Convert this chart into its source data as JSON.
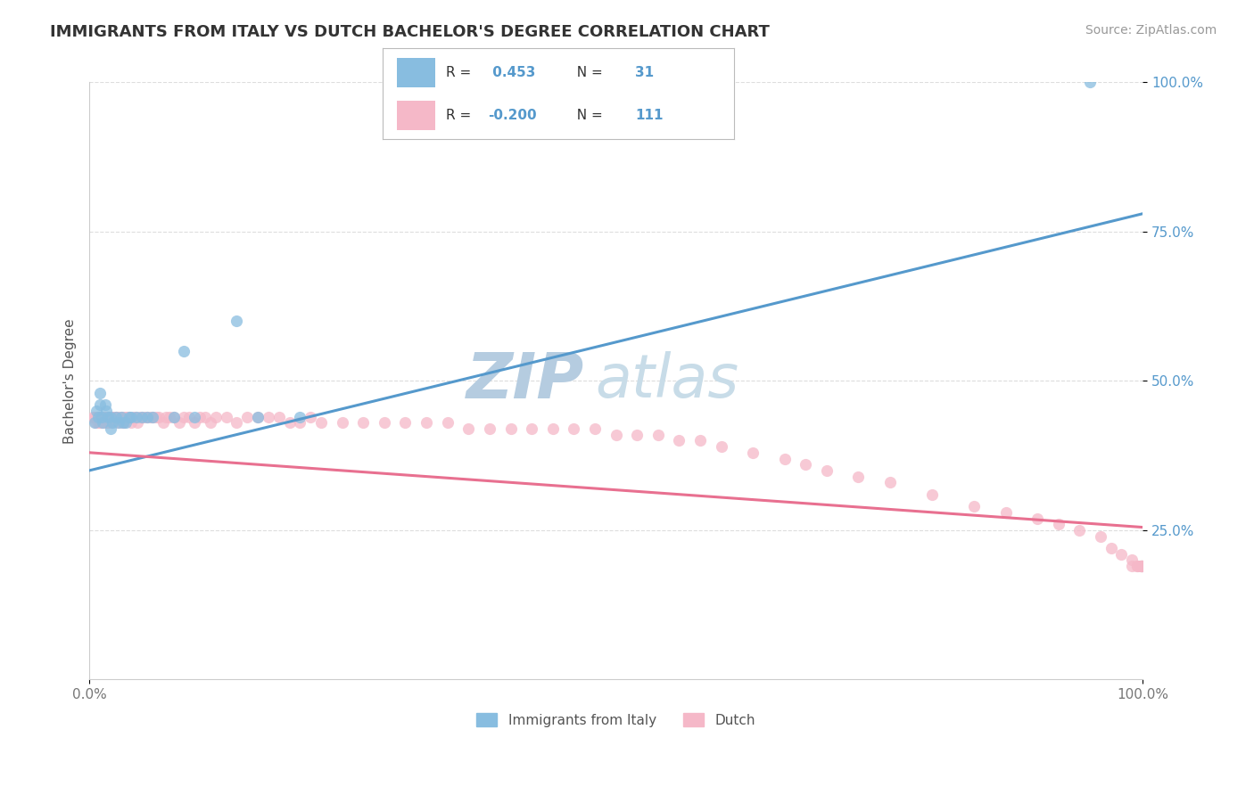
{
  "title": "IMMIGRANTS FROM ITALY VS DUTCH BACHELOR'S DEGREE CORRELATION CHART",
  "source": "Source: ZipAtlas.com",
  "ylabel": "Bachelor's Degree",
  "legend_label_1": "Immigrants from Italy",
  "legend_label_2": "Dutch",
  "r1": 0.453,
  "n1": 31,
  "r2": -0.2,
  "n2": 111,
  "color_blue": "#88bde0",
  "color_pink": "#f5b8c8",
  "line_blue": "#5599cc",
  "line_pink": "#e87090",
  "watermark_zip": "ZIP",
  "watermark_atlas": "atlas",
  "xlim": [
    0.0,
    1.0
  ],
  "ylim": [
    0.0,
    1.0
  ],
  "blue_scatter_x": [
    0.005,
    0.007,
    0.008,
    0.01,
    0.01,
    0.012,
    0.013,
    0.015,
    0.016,
    0.018,
    0.02,
    0.02,
    0.022,
    0.025,
    0.028,
    0.03,
    0.032,
    0.035,
    0.038,
    0.04,
    0.045,
    0.05,
    0.055,
    0.06,
    0.08,
    0.09,
    0.1,
    0.14,
    0.16,
    0.2,
    0.95
  ],
  "blue_scatter_y": [
    0.43,
    0.45,
    0.44,
    0.46,
    0.48,
    0.44,
    0.43,
    0.46,
    0.45,
    0.44,
    0.42,
    0.44,
    0.43,
    0.44,
    0.43,
    0.44,
    0.43,
    0.43,
    0.44,
    0.44,
    0.44,
    0.44,
    0.44,
    0.44,
    0.44,
    0.55,
    0.44,
    0.6,
    0.44,
    0.44,
    1.0
  ],
  "pink_scatter_x": [
    0.003,
    0.005,
    0.006,
    0.007,
    0.008,
    0.009,
    0.01,
    0.01,
    0.011,
    0.012,
    0.013,
    0.014,
    0.015,
    0.016,
    0.017,
    0.018,
    0.019,
    0.02,
    0.021,
    0.022,
    0.023,
    0.025,
    0.026,
    0.027,
    0.028,
    0.03,
    0.031,
    0.032,
    0.033,
    0.035,
    0.036,
    0.038,
    0.04,
    0.042,
    0.044,
    0.046,
    0.048,
    0.05,
    0.052,
    0.055,
    0.058,
    0.06,
    0.063,
    0.066,
    0.07,
    0.073,
    0.076,
    0.08,
    0.085,
    0.09,
    0.095,
    0.1,
    0.105,
    0.11,
    0.115,
    0.12,
    0.13,
    0.14,
    0.15,
    0.16,
    0.17,
    0.18,
    0.19,
    0.2,
    0.21,
    0.22,
    0.24,
    0.26,
    0.28,
    0.3,
    0.32,
    0.34,
    0.36,
    0.38,
    0.4,
    0.42,
    0.44,
    0.46,
    0.48,
    0.5,
    0.52,
    0.54,
    0.56,
    0.58,
    0.6,
    0.63,
    0.66,
    0.68,
    0.7,
    0.73,
    0.76,
    0.8,
    0.84,
    0.87,
    0.9,
    0.92,
    0.94,
    0.96,
    0.97,
    0.98,
    0.99,
    0.99,
    0.995,
    0.995,
    0.998,
    0.998,
    0.999,
    0.999,
    0.999,
    0.999,
    0.999
  ],
  "pink_scatter_y": [
    0.44,
    0.44,
    0.43,
    0.44,
    0.43,
    0.44,
    0.44,
    0.43,
    0.44,
    0.43,
    0.44,
    0.43,
    0.44,
    0.43,
    0.44,
    0.43,
    0.44,
    0.44,
    0.43,
    0.44,
    0.44,
    0.44,
    0.44,
    0.43,
    0.44,
    0.44,
    0.43,
    0.44,
    0.43,
    0.44,
    0.44,
    0.44,
    0.43,
    0.44,
    0.44,
    0.43,
    0.44,
    0.44,
    0.44,
    0.44,
    0.44,
    0.44,
    0.44,
    0.44,
    0.43,
    0.44,
    0.44,
    0.44,
    0.43,
    0.44,
    0.44,
    0.43,
    0.44,
    0.44,
    0.43,
    0.44,
    0.44,
    0.43,
    0.44,
    0.44,
    0.44,
    0.44,
    0.43,
    0.43,
    0.44,
    0.43,
    0.43,
    0.43,
    0.43,
    0.43,
    0.43,
    0.43,
    0.42,
    0.42,
    0.42,
    0.42,
    0.42,
    0.42,
    0.42,
    0.41,
    0.41,
    0.41,
    0.4,
    0.4,
    0.39,
    0.38,
    0.37,
    0.36,
    0.35,
    0.34,
    0.33,
    0.31,
    0.29,
    0.28,
    0.27,
    0.26,
    0.25,
    0.24,
    0.22,
    0.21,
    0.2,
    0.19,
    0.19,
    0.19,
    0.19,
    0.19,
    0.19,
    0.19,
    0.19,
    0.19,
    0.19
  ],
  "blue_line_x": [
    0.0,
    1.0
  ],
  "blue_line_y": [
    0.35,
    0.78
  ],
  "pink_line_x": [
    0.0,
    1.0
  ],
  "pink_line_y": [
    0.38,
    0.255
  ],
  "yticks": [
    0.25,
    0.5,
    0.75,
    1.0
  ],
  "ytick_labels": [
    "25.0%",
    "50.0%",
    "75.0%",
    "100.0%"
  ],
  "xtick_labels": [
    "0.0%",
    "100.0%"
  ],
  "grid_color": "#dddddd",
  "background_color": "#ffffff",
  "title_color": "#333333",
  "title_fontsize": 13,
  "axis_label_fontsize": 11,
  "tick_fontsize": 11,
  "source_fontsize": 10,
  "watermark_color_zip": "#b5cce0",
  "watermark_color_atlas": "#c8dce8",
  "watermark_fontsize": 52
}
